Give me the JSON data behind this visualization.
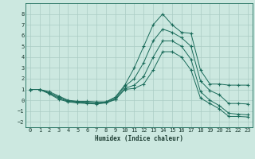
{
  "xlabel": "Humidex (Indice chaleur)",
  "background_color": "#cce8e0",
  "grid_color": "#aaccc4",
  "line_color": "#1a6b5a",
  "xlim": [
    -0.5,
    23.5
  ],
  "ylim": [
    -2.5,
    9.0
  ],
  "yticks": [
    -2,
    -1,
    0,
    1,
    2,
    3,
    4,
    5,
    6,
    7,
    8
  ],
  "xticks": [
    0,
    1,
    2,
    3,
    4,
    5,
    6,
    7,
    8,
    9,
    10,
    11,
    12,
    13,
    14,
    15,
    16,
    17,
    18,
    19,
    20,
    21,
    22,
    23
  ],
  "line1_x": [
    0,
    1,
    2,
    3,
    4,
    5,
    6,
    7,
    8,
    9,
    10,
    11,
    12,
    13,
    14,
    15,
    16,
    17,
    18,
    19,
    20,
    21,
    22,
    23
  ],
  "line1_y": [
    1.0,
    1.0,
    0.8,
    0.4,
    0.0,
    -0.1,
    -0.1,
    -0.15,
    -0.15,
    0.3,
    1.4,
    3.0,
    5.0,
    7.0,
    8.0,
    7.0,
    6.3,
    6.2,
    2.8,
    1.5,
    1.5,
    1.4,
    1.4,
    1.4
  ],
  "line2_x": [
    0,
    1,
    2,
    3,
    4,
    5,
    6,
    7,
    8,
    9,
    10,
    11,
    12,
    13,
    14,
    15,
    16,
    17,
    18,
    19,
    20,
    21,
    22,
    23
  ],
  "line2_y": [
    1.0,
    1.0,
    0.7,
    0.3,
    -0.05,
    -0.15,
    -0.2,
    -0.25,
    -0.15,
    0.2,
    1.3,
    2.0,
    3.5,
    5.5,
    6.6,
    6.3,
    5.8,
    5.0,
    1.8,
    0.9,
    0.5,
    -0.3,
    -0.3,
    -0.35
  ],
  "line3_x": [
    0,
    1,
    2,
    3,
    4,
    5,
    6,
    7,
    8,
    9,
    10,
    11,
    12,
    13,
    14,
    15,
    16,
    17,
    18,
    19,
    20,
    21,
    22,
    23
  ],
  "line3_y": [
    1.0,
    1.0,
    0.65,
    0.2,
    -0.1,
    -0.2,
    -0.25,
    -0.3,
    -0.2,
    0.1,
    1.1,
    1.4,
    2.2,
    4.0,
    5.5,
    5.5,
    5.0,
    3.8,
    0.8,
    0.0,
    -0.5,
    -1.2,
    -1.3,
    -1.35
  ],
  "line4_x": [
    0,
    1,
    2,
    3,
    4,
    5,
    6,
    7,
    8,
    9,
    10,
    11,
    12,
    13,
    14,
    15,
    16,
    17,
    18,
    19,
    20,
    21,
    22,
    23
  ],
  "line4_y": [
    1.0,
    1.0,
    0.6,
    0.1,
    -0.15,
    -0.25,
    -0.3,
    -0.35,
    -0.25,
    0.05,
    1.0,
    1.1,
    1.5,
    2.8,
    4.5,
    4.5,
    4.0,
    2.8,
    0.2,
    -0.3,
    -0.8,
    -1.5,
    -1.5,
    -1.55
  ]
}
